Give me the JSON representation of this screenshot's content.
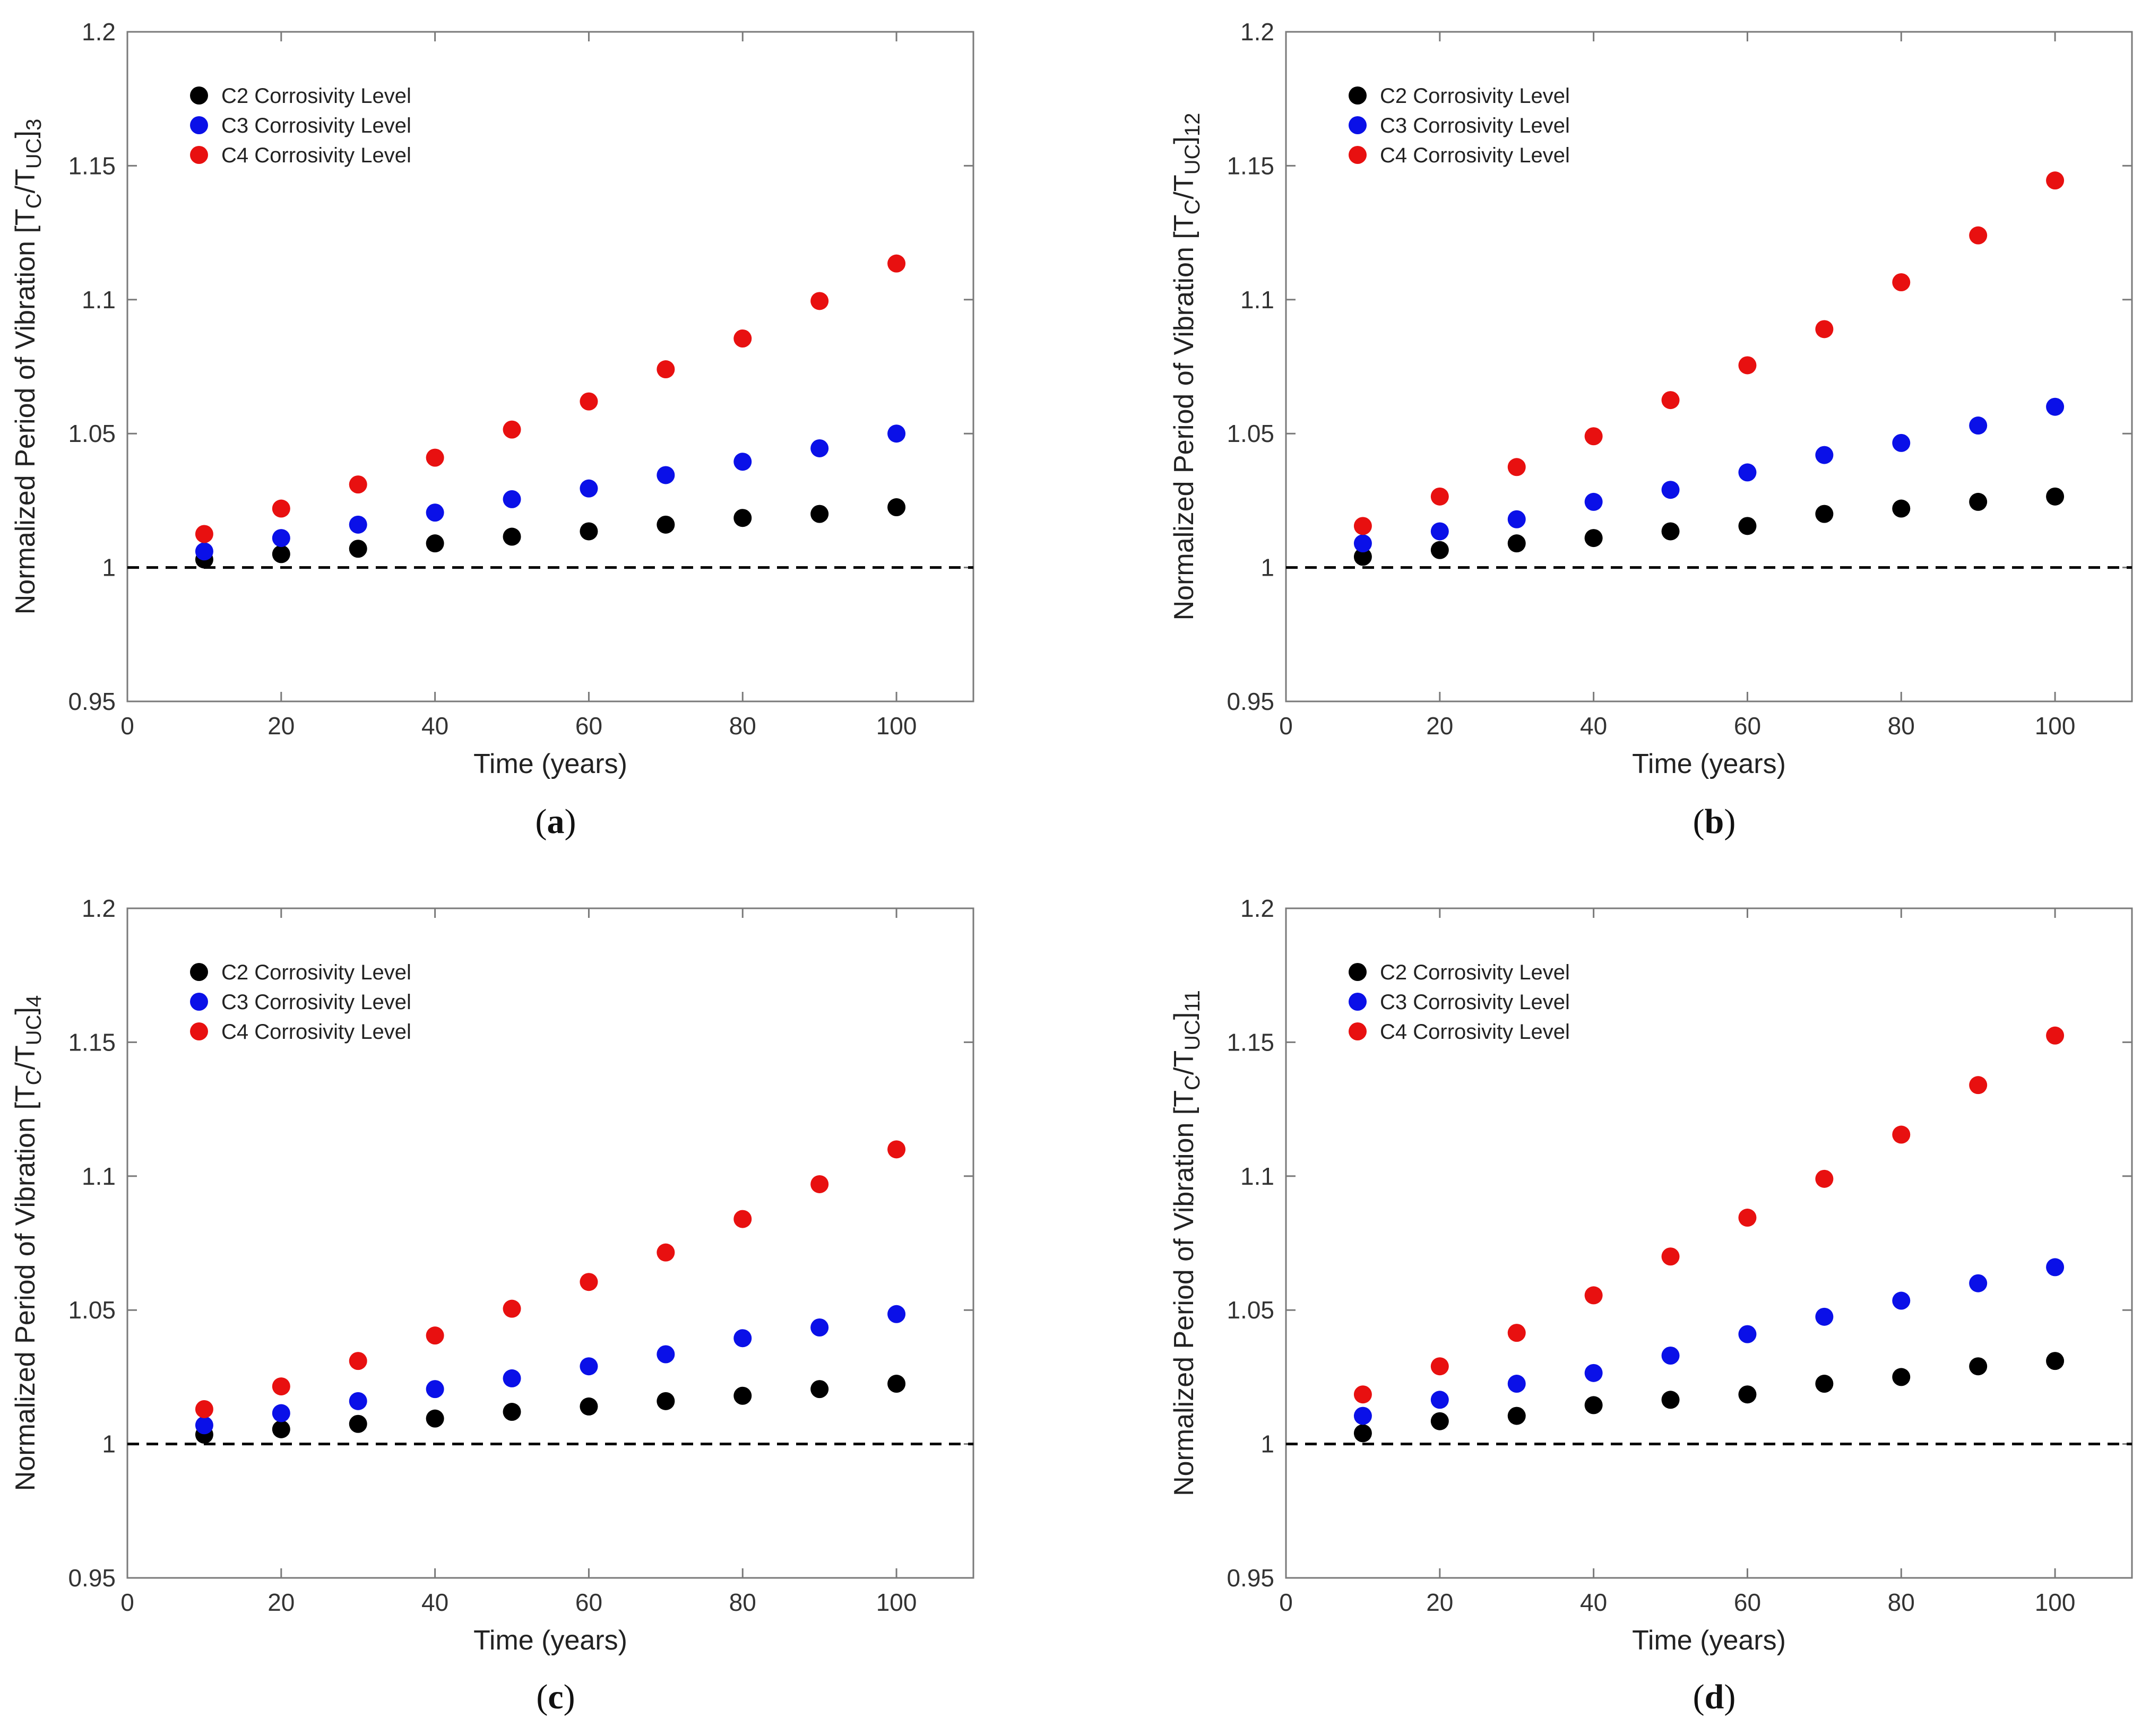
{
  "figure": {
    "xlabel": "Time (years)",
    "ylabel_prefix": "Normalized Period of Vibration ",
    "legend": [
      "C2 Corrosivity Level",
      "C3 Corrosivity Level",
      "C4 Corrosivity Level"
    ],
    "colors": {
      "C2": "#000000",
      "C3": "#0a10e8",
      "C4": "#e81010",
      "reference": "#000000"
    }
  },
  "chart_data": [
    {
      "panel": "a",
      "type": "scatter",
      "ylabel": "Normalized Period of Vibration [TC/TUC]3",
      "ylabel_subscript": "3",
      "xlabel": "Time (years)",
      "xlim": [
        0,
        110
      ],
      "ylim": [
        0.95,
        1.2
      ],
      "xticks": [
        0,
        20,
        40,
        60,
        80,
        100
      ],
      "yticks": [
        0.95,
        1,
        1.05,
        1.1,
        1.15,
        1.2
      ],
      "ytick_labels": [
        "0.95",
        "1",
        "1.05",
        "1.1",
        "1.15",
        "1.2"
      ],
      "reference_line": 1,
      "legend_position": "top-left",
      "x": [
        10,
        20,
        30,
        40,
        50,
        60,
        70,
        80,
        90,
        100
      ],
      "series": [
        {
          "name": "C2 Corrosivity Level",
          "color": "#000000",
          "values": [
            1.003,
            1.005,
            1.007,
            1.009,
            1.0115,
            1.0135,
            1.016,
            1.0185,
            1.02,
            1.0225
          ]
        },
        {
          "name": "C3 Corrosivity Level",
          "color": "#0a10e8",
          "values": [
            1.006,
            1.011,
            1.016,
            1.0205,
            1.0255,
            1.0295,
            1.0345,
            1.0395,
            1.0445,
            1.05
          ]
        },
        {
          "name": "C4 Corrosivity Level",
          "color": "#e81010",
          "values": [
            1.0125,
            1.022,
            1.031,
            1.041,
            1.0515,
            1.062,
            1.074,
            1.0855,
            1.0995,
            1.1135
          ]
        }
      ]
    },
    {
      "panel": "b",
      "type": "scatter",
      "ylabel": "Normalized Period of Vibration [TC/TUC]12",
      "ylabel_subscript": "12",
      "xlabel": "Time (years)",
      "xlim": [
        0,
        110
      ],
      "ylim": [
        0.95,
        1.2
      ],
      "xticks": [
        0,
        20,
        40,
        60,
        80,
        100
      ],
      "yticks": [
        0.95,
        1,
        1.05,
        1.1,
        1.15,
        1.2
      ],
      "ytick_labels": [
        "0.95",
        "1",
        "1.05",
        "1.1",
        "1.15",
        "1.2"
      ],
      "reference_line": 1,
      "legend_position": "top-left",
      "x": [
        10,
        20,
        30,
        40,
        50,
        60,
        70,
        80,
        90,
        100
      ],
      "series": [
        {
          "name": "C2 Corrosivity Level",
          "color": "#000000",
          "values": [
            1.004,
            1.0065,
            1.009,
            1.011,
            1.0135,
            1.0155,
            1.02,
            1.022,
            1.0245,
            1.0265
          ]
        },
        {
          "name": "C3 Corrosivity Level",
          "color": "#0a10e8",
          "values": [
            1.009,
            1.0135,
            1.018,
            1.0245,
            1.029,
            1.0355,
            1.042,
            1.0465,
            1.053,
            1.06
          ]
        },
        {
          "name": "C4 Corrosivity Level",
          "color": "#e81010",
          "values": [
            1.0155,
            1.0265,
            1.0375,
            1.049,
            1.0625,
            1.0755,
            1.089,
            1.1065,
            1.124,
            1.1445
          ]
        }
      ]
    },
    {
      "panel": "c",
      "type": "scatter",
      "ylabel": "Normalized Period of Vibration [TC/TUC]4",
      "ylabel_subscript": "4",
      "xlabel": "Time (years)",
      "xlim": [
        0,
        110
      ],
      "ylim": [
        0.95,
        1.2
      ],
      "xticks": [
        0,
        20,
        40,
        60,
        80,
        100
      ],
      "yticks": [
        0.95,
        1,
        1.05,
        1.1,
        1.15,
        1.2
      ],
      "ytick_labels": [
        "0.95",
        "1",
        "1.05",
        "1.1",
        "1.15",
        "1.2"
      ],
      "reference_line": 1,
      "legend_position": "top-left",
      "x": [
        10,
        20,
        30,
        40,
        50,
        60,
        70,
        80,
        90,
        100
      ],
      "series": [
        {
          "name": "C2 Corrosivity Level",
          "color": "#000000",
          "values": [
            1.0035,
            1.0055,
            1.0075,
            1.0095,
            1.012,
            1.014,
            1.016,
            1.018,
            1.0205,
            1.0225
          ]
        },
        {
          "name": "C3 Corrosivity Level",
          "color": "#0a10e8",
          "values": [
            1.007,
            1.0115,
            1.016,
            1.0205,
            1.0245,
            1.029,
            1.0335,
            1.0395,
            1.0435,
            1.0485
          ]
        },
        {
          "name": "C4 Corrosivity Level",
          "color": "#e81010",
          "values": [
            1.013,
            1.0215,
            1.031,
            1.0405,
            1.0505,
            1.0605,
            1.0715,
            1.084,
            1.097,
            1.11
          ]
        }
      ]
    },
    {
      "panel": "d",
      "type": "scatter",
      "ylabel": "Normalized Period of Vibration [TC/TUC]11",
      "ylabel_subscript": "11",
      "xlabel": "Time (years)",
      "xlim": [
        0,
        110
      ],
      "ylim": [
        0.95,
        1.2
      ],
      "xticks": [
        0,
        20,
        40,
        60,
        80,
        100
      ],
      "yticks": [
        0.95,
        1,
        1.05,
        1.1,
        1.15,
        1.2
      ],
      "ytick_labels": [
        "0.95",
        "1",
        "1.05",
        "1.1",
        "1.15",
        "1.2"
      ],
      "reference_line": 1,
      "legend_position": "top-left",
      "x": [
        10,
        20,
        30,
        40,
        50,
        60,
        70,
        80,
        90,
        100
      ],
      "series": [
        {
          "name": "C2 Corrosivity Level",
          "color": "#000000",
          "values": [
            1.004,
            1.0085,
            1.0105,
            1.0145,
            1.0165,
            1.0185,
            1.0225,
            1.025,
            1.029,
            1.031
          ]
        },
        {
          "name": "C3 Corrosivity Level",
          "color": "#0a10e8",
          "values": [
            1.0105,
            1.0165,
            1.0225,
            1.0265,
            1.033,
            1.041,
            1.0475,
            1.0535,
            1.06,
            1.066
          ]
        },
        {
          "name": "C4 Corrosivity Level",
          "color": "#e81010",
          "values": [
            1.0185,
            1.029,
            1.0415,
            1.0555,
            1.07,
            1.0845,
            1.099,
            1.1155,
            1.134,
            1.1525
          ]
        }
      ]
    }
  ]
}
